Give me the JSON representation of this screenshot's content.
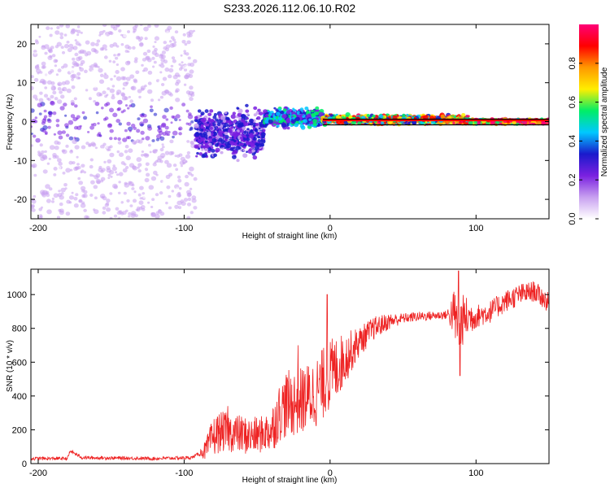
{
  "title": "S233.2026.112.06.10.R02",
  "colors": {
    "snr_line": "#ee2222",
    "zero_line": "#000000",
    "cbar_stops": [
      "#ffffff",
      "#c8a0f0",
      "#7a20e0",
      "#1a1acc",
      "#00c8ff",
      "#00ee66",
      "#ffee00",
      "#ff9900",
      "#ff0000",
      "#ff0077"
    ]
  },
  "chart_data": [
    {
      "id": "spectrogram",
      "type": "heatmap",
      "xlabel": "Height of straight line (km)",
      "ylabel": "Frequency (Hz)",
      "xlim": [
        -205,
        150
      ],
      "ylim": [
        -25,
        25
      ],
      "xticks": [
        -200,
        -100,
        0,
        100
      ],
      "yticks": [
        -20,
        -10,
        0,
        10,
        20
      ],
      "xtick_labels": [
        "-200",
        "-100",
        "0",
        "100"
      ],
      "ytick_labels": [
        "-20",
        "-10",
        "0",
        "10",
        "20"
      ],
      "colorbar": {
        "label": "Normalized spectral amplitude",
        "range": [
          0,
          1
        ],
        "ticks": [
          0.0,
          0.2,
          0.4,
          0.6,
          0.8
        ],
        "tick_labels": [
          "0.0",
          "0.2",
          "0.4",
          "0.6",
          "0.8"
        ]
      },
      "regions": [
        {
          "x": [
            -205,
            -92
          ],
          "f_center": 0,
          "f_spread": 25,
          "level": 0.12,
          "description": "noise"
        },
        {
          "x": [
            -92,
            -45
          ],
          "f_center": -3,
          "f_spread": 8,
          "level": 0.3
        },
        {
          "x": [
            -45,
            -5
          ],
          "f_center": 1,
          "f_spread": 3,
          "level": 0.45
        },
        {
          "x": [
            -5,
            95
          ],
          "f_center": 0.5,
          "f_spread": 1.5,
          "level": 0.75
        },
        {
          "x": [
            95,
            150
          ],
          "f_center": 0,
          "f_spread": 0.8,
          "level": 0.95
        }
      ]
    },
    {
      "id": "snr",
      "type": "line",
      "xlabel": "Height of straight line (km)",
      "ylabel": "SNR (10 * v/v)",
      "xlim": [
        -205,
        150
      ],
      "ylim": [
        0,
        1150
      ],
      "xticks": [
        -200,
        -100,
        0,
        100
      ],
      "yticks": [
        0,
        200,
        400,
        600,
        800,
        1000
      ],
      "xtick_labels": [
        "-200",
        "-100",
        "0",
        "100"
      ],
      "ytick_labels": [
        "0",
        "200",
        "400",
        "600",
        "800",
        "1000"
      ],
      "envelope": {
        "x": [
          -205,
          -180,
          -178,
          -170,
          -120,
          -95,
          -85,
          -80,
          -75,
          -65,
          -55,
          -48,
          -40,
          -35,
          -30,
          -20,
          -10,
          0,
          10,
          20,
          30,
          40,
          50,
          60,
          80,
          85,
          88,
          90,
          92,
          100,
          110,
          120,
          130,
          140,
          150
        ],
        "y": [
          30,
          30,
          75,
          35,
          30,
          35,
          80,
          160,
          190,
          180,
          160,
          170,
          200,
          300,
          350,
          370,
          420,
          520,
          620,
          720,
          800,
          840,
          860,
          870,
          880,
          890,
          780,
          840,
          860,
          870,
          900,
          960,
          1000,
          1020,
          950
        ]
      },
      "noise_amplitude": {
        "x": [
          -205,
          -180,
          -90,
          -80,
          -45,
          -30,
          -20,
          0,
          20,
          50,
          80,
          85,
          90,
          100,
          150
        ],
        "y": [
          10,
          10,
          10,
          120,
          110,
          200,
          200,
          220,
          90,
          30,
          25,
          150,
          160,
          70,
          60
        ]
      },
      "spikes": [
        {
          "x": 88,
          "y": 1140
        },
        {
          "x": -2,
          "y": 1000
        },
        {
          "x": -22,
          "y": 700
        },
        {
          "x": -70,
          "y": 340
        },
        {
          "x": 89,
          "y": 520
        }
      ]
    }
  ]
}
